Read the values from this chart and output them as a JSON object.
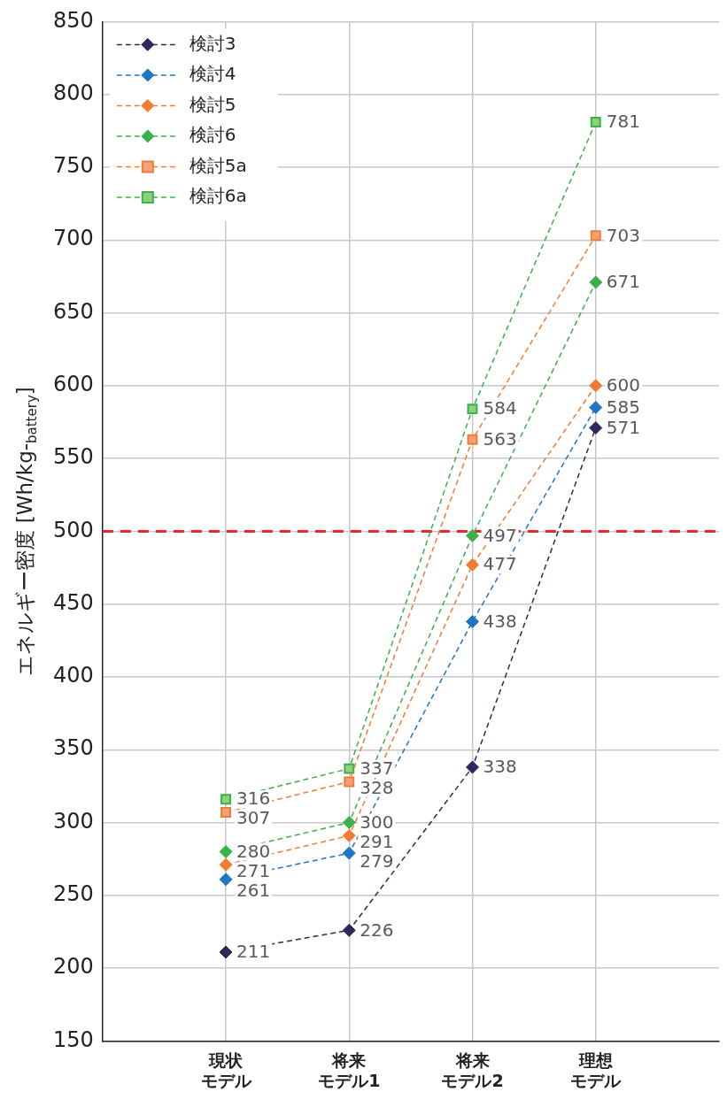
{
  "chart_data": {
    "type": "line",
    "ylabel": "エネルギー密度 [Wh/kg-$_{battery}$]",
    "categories": [
      "現状モデル",
      "将来モデル1",
      "将来モデル2",
      "理想モデル"
    ],
    "series": [
      {
        "name": "検討3",
        "color": "#2b2a5a",
        "values": [
          211,
          226,
          338,
          571
        ],
        "marker": "diamond",
        "line_style": "dashed"
      },
      {
        "name": "検討4",
        "color": "#1f76c2",
        "values": [
          261,
          279,
          438,
          585
        ],
        "marker": "diamond",
        "line_style": "dashed"
      },
      {
        "name": "検討5",
        "color": "#f07c32",
        "values": [
          271,
          291,
          477,
          600
        ],
        "marker": "diamond",
        "line_style": "dashed"
      },
      {
        "name": "検討6",
        "color": "#39b24a",
        "values": [
          280,
          300,
          497,
          671
        ],
        "marker": "diamond",
        "line_style": "dashed"
      },
      {
        "name": "検討5a",
        "color": "#f4a07a",
        "values": [
          307,
          328,
          563,
          703
        ],
        "marker": "square",
        "line_style": "dashed"
      },
      {
        "name": "検討6a",
        "color": "#8fcf7e",
        "values": [
          316,
          337,
          584,
          781
        ],
        "marker": "square",
        "line_style": "dashed"
      }
    ],
    "ylim": [
      150,
      850
    ],
    "yticks": [
      150,
      200,
      250,
      300,
      350,
      400,
      450,
      500,
      550,
      600,
      650,
      700,
      750,
      800,
      850
    ],
    "grid": true,
    "legend": "top left",
    "data_labels": true,
    "ref_lines": [
      {
        "axis": "y",
        "value": 500,
        "color": "#e8272a",
        "line_style": "dashed"
      }
    ]
  }
}
